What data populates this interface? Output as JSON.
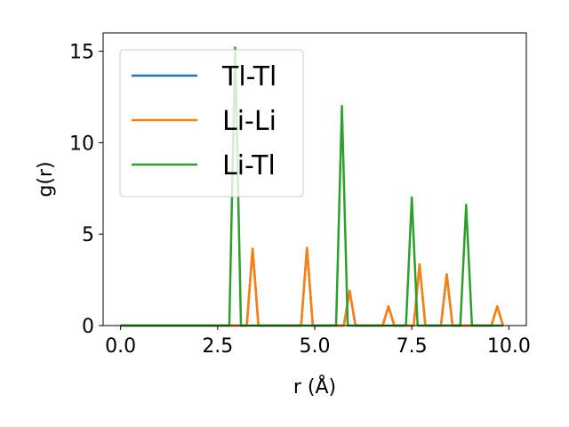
{
  "chart_data": {
    "type": "line",
    "title": "",
    "xlabel": "r (Å)",
    "ylabel": "g(r)",
    "xlim": [
      -0.45,
      10.45
    ],
    "ylim": [
      0,
      16
    ],
    "xticks": [
      0.0,
      2.5,
      5.0,
      7.5,
      10.0
    ],
    "xtick_labels": [
      "0.0",
      "2.5",
      "5.0",
      "7.5",
      "10.0"
    ],
    "yticks": [
      0,
      5,
      10,
      15
    ],
    "ytick_labels": [
      "0",
      "5",
      "10",
      "15"
    ],
    "grid": false,
    "legend_position": "top-left",
    "series": [
      {
        "name": "Tl-Tl",
        "color": "#1f77b4",
        "x": [
          0.0,
          3.25,
          3.4,
          3.55,
          4.65,
          4.8,
          4.95,
          5.75,
          5.9,
          6.05,
          6.75,
          6.9,
          7.05,
          7.55,
          7.7,
          7.85,
          8.25,
          8.4,
          8.55,
          9.55,
          9.7,
          9.85
        ],
        "y": [
          0.0,
          0.0,
          4.2,
          0.0,
          0.0,
          4.25,
          0.0,
          0.0,
          1.9,
          0.0,
          0.0,
          1.05,
          0.0,
          0.0,
          3.35,
          0.0,
          0.0,
          2.8,
          0.0,
          0.0,
          1.05,
          0.0
        ]
      },
      {
        "name": "Li-Li",
        "color": "#ff7f0e",
        "x": [
          0.0,
          3.25,
          3.4,
          3.55,
          4.65,
          4.8,
          4.95,
          5.75,
          5.9,
          6.05,
          6.75,
          6.9,
          7.05,
          7.55,
          7.7,
          7.85,
          8.25,
          8.4,
          8.55,
          9.55,
          9.7,
          9.85
        ],
        "y": [
          0.0,
          0.0,
          4.2,
          0.0,
          0.0,
          4.25,
          0.0,
          0.0,
          1.9,
          0.0,
          0.0,
          1.05,
          0.0,
          0.0,
          3.35,
          0.0,
          0.0,
          2.8,
          0.0,
          0.0,
          1.05,
          0.0
        ]
      },
      {
        "name": "Li-Tl",
        "color": "#2ca02c",
        "x": [
          0.0,
          2.8,
          2.95,
          3.1,
          5.55,
          5.7,
          5.85,
          7.35,
          7.5,
          7.65,
          8.75,
          8.9,
          9.05,
          9.85
        ],
        "y": [
          0.0,
          0.0,
          15.2,
          0.0,
          0.0,
          12.0,
          0.0,
          0.0,
          7.0,
          0.0,
          0.0,
          6.6,
          0.0,
          0.0
        ]
      }
    ]
  }
}
